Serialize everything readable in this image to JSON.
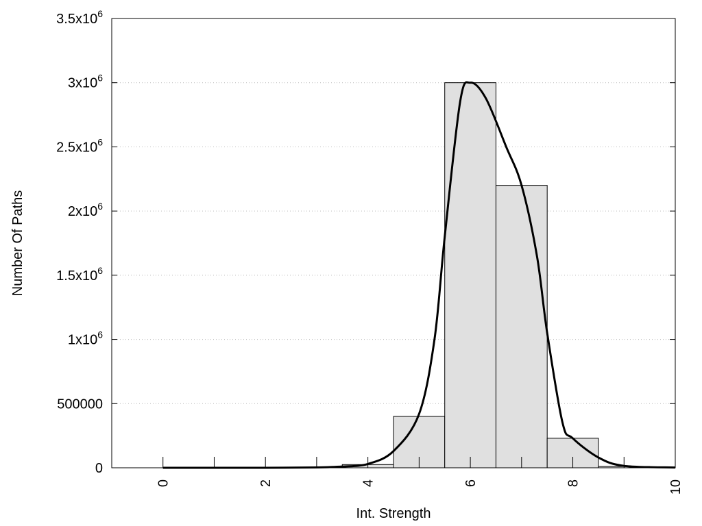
{
  "chart_data": {
    "type": "bar",
    "title": "",
    "xlabel": "Int. Strength",
    "ylabel": "Number Of Paths",
    "xlim": [
      -1,
      10
    ],
    "ylim": [
      0,
      3500000
    ],
    "grid": "horizontal dotted",
    "x_ticks": [
      0,
      2,
      4,
      6,
      8,
      10
    ],
    "x_tick_labels": [
      "0",
      "2",
      "4",
      "6",
      "8",
      "10"
    ],
    "y_ticks": [
      0,
      500000,
      1000000,
      1500000,
      2000000,
      2500000,
      3000000,
      3500000
    ],
    "y_tick_labels": [
      {
        "base": "0",
        "exp": ""
      },
      {
        "base": "500000",
        "exp": ""
      },
      {
        "base": "1x10",
        "exp": "6"
      },
      {
        "base": "1.5x10",
        "exp": "6"
      },
      {
        "base": "2x10",
        "exp": "6"
      },
      {
        "base": "2.5x10",
        "exp": "6"
      },
      {
        "base": "3x10",
        "exp": "6"
      },
      {
        "base": "3.5x10",
        "exp": "6"
      }
    ],
    "bars": {
      "x": [
        3,
        4,
        5,
        6,
        7,
        8,
        9
      ],
      "values": [
        2000,
        25000,
        400000,
        3000000,
        2200000,
        230000,
        10000
      ],
      "width": 1,
      "color": "#e0e0e0"
    },
    "curve": {
      "x": [
        0,
        1,
        2,
        3,
        3.5,
        4,
        4.5,
        5,
        5.3,
        5.5,
        5.8,
        6,
        6.3,
        6.7,
        7,
        7.3,
        7.5,
        7.8,
        8,
        8.5,
        9,
        10
      ],
      "y": [
        0,
        0,
        0,
        3000,
        10000,
        30000,
        130000,
        420000,
        1000000,
        1800000,
        2850000,
        3000000,
        2880000,
        2500000,
        2200000,
        1650000,
        1050000,
        350000,
        230000,
        80000,
        15000,
        2000
      ],
      "color": "#000000"
    }
  }
}
